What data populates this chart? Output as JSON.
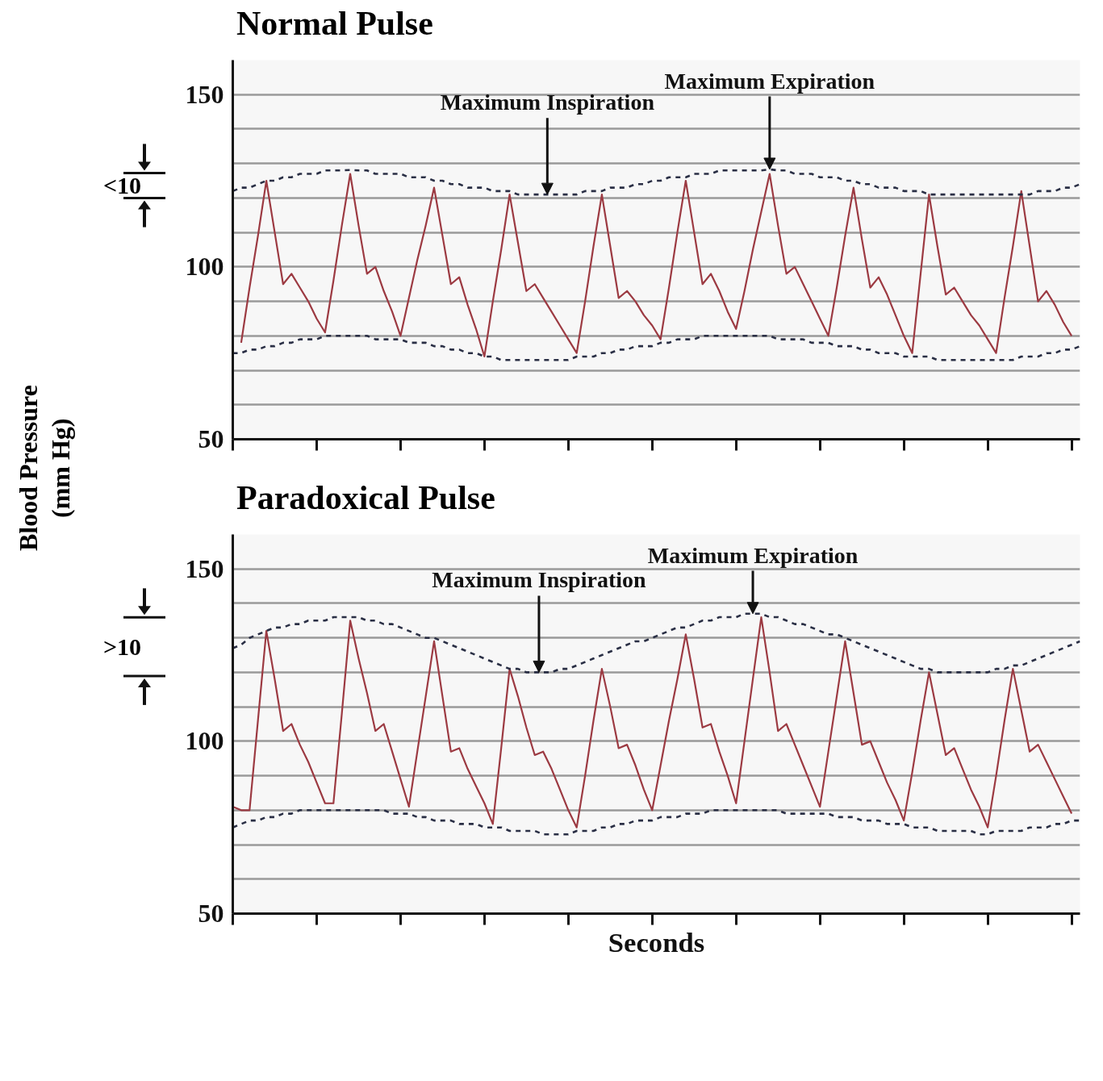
{
  "chart_data": [
    {
      "type": "line",
      "title": "Normal Pulse",
      "ylabel": "Blood Pressure (mm Hg)",
      "ylim": [
        50,
        160
      ],
      "categories": [
        null,
        null,
        null,
        null,
        null,
        null,
        null,
        null,
        null,
        null,
        null,
        null,
        null,
        null,
        null,
        null,
        null,
        null,
        null,
        null,
        null,
        null,
        null,
        null,
        null,
        null,
        null,
        null,
        null,
        null,
        null,
        null,
        null,
        null,
        null,
        null,
        null,
        null,
        null,
        null,
        null,
        null,
        null,
        null,
        null,
        null,
        null,
        null,
        null,
        null,
        null,
        null,
        null,
        null,
        null,
        null,
        null,
        null,
        null,
        null,
        null,
        null,
        null,
        null,
        null,
        null,
        null,
        null,
        null,
        null,
        null,
        null,
        null,
        null,
        null,
        null,
        null,
        null,
        null,
        null,
        null,
        null,
        null,
        null,
        null,
        null,
        null,
        null,
        null,
        null,
        null,
        null,
        null,
        null,
        null,
        null,
        null,
        null,
        null,
        null,
        null,
        null
      ],
      "yticks": [
        50,
        {
          "value": 60,
          "label": null
        },
        {
          "value": 70,
          "label": null
        },
        {
          "value": 80,
          "label": null
        },
        {
          "value": 90,
          "label": null
        },
        100,
        {
          "value": 110,
          "label": null
        },
        {
          "value": 120,
          "label": null
        },
        {
          "value": 130,
          "label": null
        },
        {
          "value": 140,
          "label": null
        },
        150
      ],
      "tick_labels": "y",
      "grid": "y",
      "annotations": [
        "<10",
        {
          "text": "Maximum Inspiration",
          "y": 121
        },
        {
          "text": "Maximum Expiration",
          "y": 128.3
        }
      ],
      "series": [
        {
          "color": "#9c3a42",
          "line_style": "solid",
          "values": [
            null,
            78,
            94,
            109,
            125,
            110,
            95,
            98,
            94,
            90,
            85,
            81,
            96,
            112,
            127,
            112,
            98,
            100,
            93,
            87,
            80,
            91,
            102,
            112,
            123,
            109,
            95,
            97,
            89,
            82,
            74,
            90,
            105,
            121,
            107,
            93,
            95,
            91,
            87,
            83,
            79,
            75,
            90,
            106,
            121,
            106,
            91,
            93,
            90,
            86,
            83,
            79,
            94,
            110,
            125,
            110,
            95,
            98,
            93,
            87,
            82,
            93,
            105,
            116,
            127,
            112,
            98,
            100,
            95,
            90,
            85,
            80,
            94,
            109,
            123,
            108,
            94,
            97,
            92,
            86,
            80,
            75,
            98,
            121,
            106,
            92,
            94,
            90,
            86,
            83,
            79,
            75,
            91,
            106,
            122,
            106,
            90,
            93,
            89,
            84,
            80,
            null
          ]
        },
        {
          "color": "#2a2f45",
          "line_style": "dashed",
          "values": [
            122,
            123,
            123,
            124,
            125,
            125,
            126,
            126,
            127,
            127,
            127,
            128,
            128,
            128,
            128.1,
            128,
            128,
            127,
            127,
            127,
            127,
            126,
            126,
            126,
            125,
            125,
            124,
            124,
            123,
            123,
            123,
            122,
            122,
            122,
            121,
            121,
            121,
            121,
            121,
            121,
            121,
            121,
            122,
            122,
            122,
            123,
            123,
            123,
            124,
            124,
            125,
            125,
            126,
            126,
            126,
            127,
            127,
            127,
            128,
            128,
            128,
            128,
            128,
            128,
            128.3,
            128,
            128,
            127,
            127,
            127,
            126,
            126,
            126,
            125,
            125,
            124,
            124,
            123,
            123,
            123,
            122,
            122,
            122,
            121,
            121,
            121,
            121,
            121,
            121,
            121,
            121,
            121,
            121,
            121,
            121,
            121,
            122,
            122,
            122,
            123,
            123,
            124
          ]
        },
        {
          "color": "#2a2f45",
          "line_style": "dashed",
          "values": [
            75,
            75,
            76,
            76,
            77,
            77,
            78,
            78,
            79,
            79,
            79,
            80,
            80,
            80,
            80,
            80,
            80,
            79,
            79,
            79,
            79,
            78,
            78,
            78,
            77,
            77,
            76,
            76,
            75,
            75,
            74,
            74,
            73,
            73,
            73,
            73,
            73,
            73,
            73,
            73,
            73,
            74,
            74,
            74,
            75,
            75,
            76,
            76,
            77,
            77,
            77,
            78,
            78,
            79,
            79,
            79,
            80,
            80,
            80,
            80,
            80,
            80,
            80,
            80,
            80,
            79,
            79,
            79,
            79,
            78,
            78,
            78,
            77,
            77,
            77,
            76,
            76,
            75,
            75,
            75,
            74,
            74,
            74,
            74,
            73,
            73,
            73,
            73,
            73,
            73,
            73,
            73,
            73,
            73,
            74,
            74,
            74,
            75,
            75,
            76,
            76,
            77
          ]
        }
      ]
    },
    {
      "type": "line",
      "title": "Paradoxical Pulse",
      "xlabel": "Seconds",
      "ylim": [
        50,
        160
      ],
      "categories": [
        null,
        null,
        null,
        null,
        null,
        null,
        null,
        null,
        null,
        null,
        null,
        null,
        null,
        null,
        null,
        null,
        null,
        null,
        null,
        null,
        null,
        null,
        null,
        null,
        null,
        null,
        null,
        null,
        null,
        null,
        null,
        null,
        null,
        null,
        null,
        null,
        null,
        null,
        null,
        null,
        null,
        null,
        null,
        null,
        null,
        null,
        null,
        null,
        null,
        null,
        null,
        null,
        null,
        null,
        null,
        null,
        null,
        null,
        null,
        null,
        null,
        null,
        null,
        null,
        null,
        null,
        null,
        null,
        null,
        null,
        null,
        null,
        null,
        null,
        null,
        null,
        null,
        null,
        null,
        null,
        null,
        null,
        null,
        null,
        null,
        null,
        null,
        null,
        null,
        null,
        null,
        null,
        null,
        null,
        null,
        null,
        null,
        null,
        null,
        null,
        null,
        null
      ],
      "yticks": [
        50,
        {
          "value": 60,
          "label": null
        },
        {
          "value": 70,
          "label": null
        },
        {
          "value": 80,
          "label": null
        },
        {
          "value": 90,
          "label": null
        },
        100,
        {
          "value": 110,
          "label": null
        },
        {
          "value": 120,
          "label": null
        },
        {
          "value": 130,
          "label": null
        },
        {
          "value": 140,
          "label": null
        },
        150
      ],
      "tick_labels": "y",
      "grid": "y",
      "annotations": [
        ">10",
        {
          "text": "Maximum Inspiration",
          "y": 120
        },
        {
          "text": "Maximum Expiration",
          "y": 137
        }
      ],
      "series": [
        {
          "color": "#9c3a42",
          "line_style": "solid",
          "values": [
            81,
            80,
            80,
            106,
            132,
            118,
            103,
            105,
            99,
            94,
            88,
            82,
            82,
            108,
            135,
            124,
            114,
            103,
            105,
            97,
            89,
            81,
            97,
            113,
            129,
            113,
            97,
            98,
            92,
            87,
            82,
            76,
            98,
            121,
            113,
            104,
            96,
            97,
            92,
            86,
            80,
            75,
            90,
            106,
            121,
            110,
            98,
            99,
            93,
            86,
            80,
            93,
            106,
            118,
            131,
            118,
            104,
            105,
            97,
            90,
            82,
            100,
            118,
            136,
            120,
            103,
            105,
            99,
            93,
            87,
            81,
            97,
            113,
            129,
            114,
            99,
            100,
            94,
            88,
            83,
            77,
            91,
            106,
            120,
            108,
            96,
            98,
            92,
            86,
            81,
            75,
            90,
            106,
            121,
            109,
            97,
            99,
            94,
            89,
            84,
            79,
            null
          ]
        },
        {
          "color": "#2a2f45",
          "line_style": "dashed",
          "values": [
            127,
            128,
            130,
            131,
            132,
            133,
            133,
            134,
            134,
            135,
            135,
            135,
            136,
            136,
            136,
            136,
            135,
            135,
            134,
            134,
            133,
            132,
            131,
            130,
            130,
            129,
            128,
            127,
            126,
            125,
            124,
            123,
            122,
            121,
            121,
            120,
            120,
            120,
            120,
            121,
            121,
            122,
            123,
            124,
            125,
            126,
            127,
            128,
            129,
            129,
            130,
            131,
            132,
            133,
            133,
            134,
            135,
            135,
            136,
            136,
            136,
            137,
            137,
            137,
            136,
            136,
            135,
            134,
            134,
            133,
            132,
            131,
            131,
            130,
            129,
            128,
            127,
            126,
            125,
            124,
            123,
            122,
            121,
            121,
            120,
            120,
            120,
            120,
            120,
            120,
            120,
            121,
            121,
            122,
            122,
            123,
            124,
            125,
            126,
            127,
            128,
            129
          ]
        },
        {
          "color": "#2a2f45",
          "line_style": "dashed",
          "values": [
            75,
            76,
            77,
            77,
            78,
            78,
            79,
            79,
            80,
            80,
            80,
            80,
            80,
            80,
            80,
            80,
            80,
            80,
            80,
            79,
            79,
            79,
            78,
            78,
            77,
            77,
            77,
            76,
            76,
            76,
            75,
            75,
            75,
            74,
            74,
            74,
            74,
            73,
            73,
            73,
            73,
            74,
            74,
            74,
            75,
            75,
            76,
            76,
            77,
            77,
            77,
            78,
            78,
            78,
            79,
            79,
            79,
            80,
            80,
            80,
            80,
            80,
            80,
            80,
            80,
            80,
            79,
            79,
            79,
            79,
            79,
            79,
            78,
            78,
            78,
            77,
            77,
            77,
            76,
            76,
            76,
            75,
            75,
            75,
            74,
            74,
            74,
            74,
            74,
            73,
            73,
            74,
            74,
            74,
            74,
            75,
            75,
            75,
            76,
            76,
            77,
            77
          ]
        }
      ]
    }
  ]
}
